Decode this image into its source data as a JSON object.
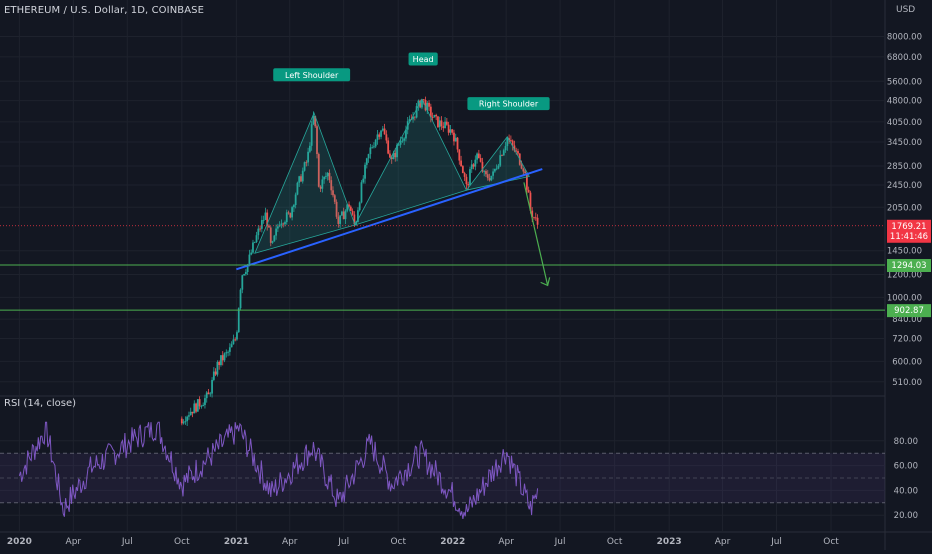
{
  "header": {
    "title": "ETHEREUM / U.S. Dollar, 1D, COINBASE",
    "currency": "USD",
    "rsi_title": "RSI (14, close)"
  },
  "colors": {
    "background": "#131722",
    "grid": "#1e222d",
    "candle_up": "#26a69a",
    "candle_down": "#ef5350",
    "trendline": "#2962ff",
    "pattern_fill": "#26a69a",
    "target_line": "#4caf50",
    "rsi_line": "#7e57c2",
    "rsi_band": "#7e57c2",
    "price_label": "#f23645"
  },
  "price_axis": {
    "ticks": [
      "8000.00",
      "6800.00",
      "5600.00",
      "4800.00",
      "4050.00",
      "3450.00",
      "2850.00",
      "2450.00",
      "2050.00",
      "1450.00",
      "1200.00",
      "1000.00",
      "840.00",
      "720.00",
      "600.00",
      "510.00"
    ]
  },
  "rsi_axis": {
    "ticks": [
      "80.00",
      "60.00",
      "40.00",
      "20.00"
    ]
  },
  "time_axis": {
    "ticks": [
      "2020",
      "Apr",
      "Jul",
      "Oct",
      "2021",
      "Apr",
      "Jul",
      "Oct",
      "2022",
      "Apr",
      "Jul",
      "Oct",
      "2023",
      "Apr",
      "Jul",
      "Oct"
    ]
  },
  "annotations": {
    "left_shoulder": "Left Shoulder",
    "head": "Head",
    "right_shoulder": "Right Shoulder"
  },
  "price_labels": {
    "current": "1769.21",
    "countdown": "11:41:46",
    "target_1": "1294.03",
    "target_2": "902.87"
  },
  "chart_data": {
    "type": "line",
    "title": "",
    "y_scale": "log",
    "ylim": [
      470,
      9500
    ],
    "xlim": [
      "2019-12-28",
      "2023-12-31"
    ],
    "series": [
      {
        "values": [
          [
            "2020-10-01",
            380
          ],
          [
            "2020-11-15",
            455
          ],
          [
            "2020-12-01",
            590
          ],
          [
            "2020-12-20",
            650
          ],
          [
            "2021-01-01",
            730
          ],
          [
            "2021-01-10",
            1200
          ],
          [
            "2021-01-20",
            1300
          ],
          [
            "2021-02-10",
            1750
          ],
          [
            "2021-02-20",
            1950
          ],
          [
            "2021-03-01",
            1450
          ],
          [
            "2021-03-15",
            1850
          ],
          [
            "2021-04-01",
            1920
          ],
          [
            "2021-04-15",
            2450
          ],
          [
            "2021-05-01",
            3000
          ],
          [
            "2021-05-12",
            4300
          ],
          [
            "2021-05-20",
            2400
          ],
          [
            "2021-06-05",
            2700
          ],
          [
            "2021-06-22",
            1800
          ],
          [
            "2021-07-10",
            2100
          ],
          [
            "2021-07-20",
            1750
          ],
          [
            "2021-08-05",
            2700
          ],
          [
            "2021-08-15",
            3250
          ],
          [
            "2021-09-03",
            3900
          ],
          [
            "2021-09-20",
            2950
          ],
          [
            "2021-10-05",
            3500
          ],
          [
            "2021-10-25",
            4200
          ],
          [
            "2021-11-10",
            4850
          ],
          [
            "2021-11-25",
            4300
          ],
          [
            "2021-12-05",
            4050
          ],
          [
            "2021-12-20",
            3900
          ],
          [
            "2022-01-01",
            3750
          ],
          [
            "2022-01-10",
            3200
          ],
          [
            "2022-01-24",
            2400
          ],
          [
            "2022-02-10",
            3150
          ],
          [
            "2022-02-24",
            2600
          ],
          [
            "2022-03-10",
            2650
          ],
          [
            "2022-04-03",
            3550
          ],
          [
            "2022-04-20",
            3100
          ],
          [
            "2022-05-01",
            2800
          ],
          [
            "2022-05-12",
            2000
          ],
          [
            "2022-05-25",
            1769.21
          ]
        ]
      },
      {
        "values": [
          [
            "2020-01-01",
            52
          ],
          [
            "2020-02-15",
            90
          ],
          [
            "2020-03-15",
            25
          ],
          [
            "2020-05-01",
            58
          ],
          [
            "2020-07-15",
            82
          ],
          [
            "2020-08-20",
            92
          ],
          [
            "2020-10-01",
            45
          ],
          [
            "2021-01-05",
            90
          ],
          [
            "2021-03-01",
            38
          ],
          [
            "2021-05-10",
            75
          ],
          [
            "2021-06-22",
            30
          ],
          [
            "2021-08-15",
            78
          ],
          [
            "2021-09-20",
            45
          ],
          [
            "2021-11-08",
            70
          ],
          [
            "2022-01-24",
            22
          ],
          [
            "2022-04-01",
            72
          ],
          [
            "2022-05-12",
            25
          ],
          [
            "2022-05-25",
            40
          ]
        ]
      }
    ],
    "lines": {
      "neckline": [
        [
          "2021-01-01",
          1250
        ],
        [
          "2022-06-01",
          2780
        ]
      ],
      "projection": [
        [
          "2022-05-01",
          2500
        ],
        [
          "2022-06-10",
          1100
        ]
      ],
      "support_1": 1294.03,
      "support_2": 902.87,
      "rsi_upper": 70,
      "rsi_middle": 50,
      "rsi_lower": 30
    }
  }
}
